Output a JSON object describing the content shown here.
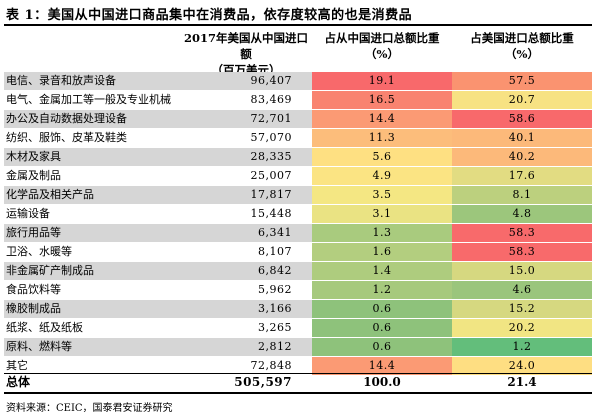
{
  "title": "表 1：美国从中国进口商品集中在消费品，依存度较高的也是消费品",
  "headers": {
    "imports": "2017年美国从中国进口额",
    "imports_unit": "（百万美元）",
    "share_china": "占从中国进口总额比重",
    "share_china_unit": "（%）",
    "share_us": "占美国进口总额比重",
    "share_us_unit": "（%）"
  },
  "rows": [
    {
      "name": "电信、录音和放声设备",
      "imports": "96,407",
      "share_china": "19.1",
      "share_us": "57.5",
      "color1": "#f8696b",
      "color2": "#fa9370"
    },
    {
      "name": "电气、金属加工等一般及专业机械",
      "imports": "83,469",
      "share_china": "16.5",
      "share_us": "20.7",
      "color1": "#f98370",
      "color2": "#f7e283"
    },
    {
      "name": "办公及自动数据处理设备",
      "imports": "72,701",
      "share_china": "14.4",
      "share_us": "58.6",
      "color1": "#fb9a74",
      "color2": "#f8696b"
    },
    {
      "name": "纺织、服饰、皮革及鞋类",
      "imports": "57,070",
      "share_china": "11.3",
      "share_us": "40.1",
      "color1": "#fcbd7b",
      "color2": "#fcb97a"
    },
    {
      "name": "木材及家具",
      "imports": "28,335",
      "share_china": "5.6",
      "share_us": "40.2",
      "color1": "#fee082",
      "color2": "#fcb97a"
    },
    {
      "name": "金属及制品",
      "imports": "25,007",
      "share_china": "4.9",
      "share_us": "17.6",
      "color1": "#fbe483",
      "color2": "#e2dc82"
    },
    {
      "name": "化学品及相关产品",
      "imports": "17,817",
      "share_china": "3.5",
      "share_us": "8.1",
      "color1": "#f4e783",
      "color2": "#bcd07e"
    },
    {
      "name": "运输设备",
      "imports": "15,448",
      "share_china": "3.1",
      "share_us": "4.8",
      "color1": "#eae383",
      "color2": "#9cc67c"
    },
    {
      "name": "旅行用品等",
      "imports": "6,341",
      "share_china": "1.3",
      "share_us": "58.3",
      "color1": "#a9cb7e",
      "color2": "#f86a6b"
    },
    {
      "name": "卫浴、水暖等",
      "imports": "8,107",
      "share_china": "1.6",
      "share_us": "58.3",
      "color1": "#b3ce7f",
      "color2": "#f86a6b"
    },
    {
      "name": "非金属矿产制成品",
      "imports": "6,842",
      "share_china": "1.4",
      "share_us": "15.0",
      "color1": "#aecc7e",
      "color2": "#d6d880"
    },
    {
      "name": "食品饮料等",
      "imports": "5,962",
      "share_china": "1.2",
      "share_us": "4.6",
      "color1": "#a6c97d",
      "color2": "#9ac57c"
    },
    {
      "name": "橡胶制成品",
      "imports": "3,166",
      "share_china": "0.6",
      "share_us": "15.2",
      "color1": "#8ec27b",
      "color2": "#d6d880"
    },
    {
      "name": "纸浆、纸及纸板",
      "imports": "3,265",
      "share_china": "0.6",
      "share_us": "20.2",
      "color1": "#8ec27b",
      "color2": "#f1e583"
    },
    {
      "name": "原料、燃料等",
      "imports": "2,812",
      "share_china": "0.6",
      "share_us": "1.2",
      "color1": "#8ec27b",
      "color2": "#63be7b"
    },
    {
      "name": "其它",
      "imports": "72,848",
      "share_china": "14.4",
      "share_us": "24.0",
      "color1": "#fb9a74",
      "color2": "#fede82"
    }
  ],
  "total": {
    "name": "总体",
    "imports": "505,597",
    "share_china": "100.0",
    "share_us": "21.4"
  },
  "source": "资料来源：CEIC，国泰君安证券研究"
}
